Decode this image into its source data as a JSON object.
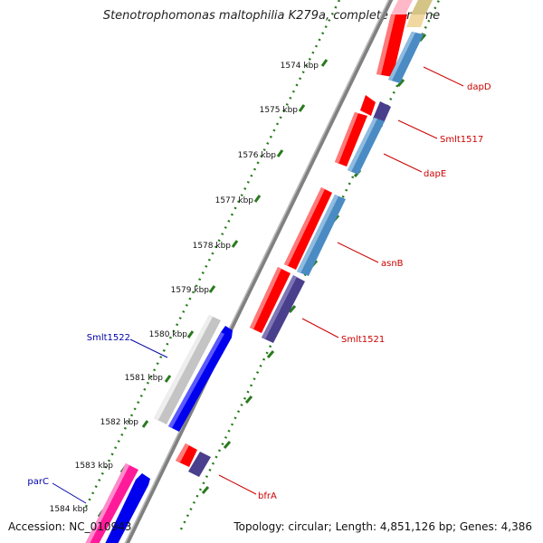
{
  "title": "Stenotrophomonas maltophilia K279a, complete genome",
  "accession": "Accession: NC_010943",
  "stats": "Topology: circular; Length: 4,851,126 bp; Genes: 4,386",
  "colors": {
    "backbone": "#808080",
    "tick": "#2a7a1f",
    "label_forward": "#cc0000",
    "label_reverse": "#0000aa",
    "red": "#ff0000",
    "steelblue": "#4a8bc4",
    "navy": "#4a3f8c",
    "blue": "#0000ee",
    "grey": "#c4c4c4",
    "pink": "#ff1a9a",
    "tan": "#d4c486"
  },
  "ruler": {
    "ticks": [
      "1574 kbp",
      "1575 kbp",
      "1576 kbp",
      "1577 kbp",
      "1578 kbp",
      "1579 kbp",
      "1580 kbp",
      "1581 kbp",
      "1582 kbp",
      "1583 kbp",
      "1584 kbp"
    ]
  },
  "genes": [
    {
      "name": "dapD",
      "strand": "forward"
    },
    {
      "name": "Smlt1517",
      "strand": "forward"
    },
    {
      "name": "dapE",
      "strand": "forward"
    },
    {
      "name": "asnB",
      "strand": "forward"
    },
    {
      "name": "Smlt1521",
      "strand": "forward"
    },
    {
      "name": "Smlt1522",
      "strand": "reverse"
    },
    {
      "name": "bfrA",
      "strand": "forward"
    },
    {
      "name": "parC",
      "strand": "reverse"
    }
  ]
}
